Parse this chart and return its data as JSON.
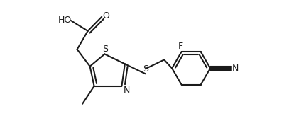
{
  "bg_color": "#ffffff",
  "line_color": "#1a1a1a",
  "line_width": 1.5,
  "text_color": "#1a1a1a",
  "font_size": 9,
  "figsize": [
    4.07,
    1.88
  ],
  "dpi": 100,
  "xlim": [
    0.0,
    4.07
  ],
  "ylim": [
    0.0,
    1.88
  ]
}
